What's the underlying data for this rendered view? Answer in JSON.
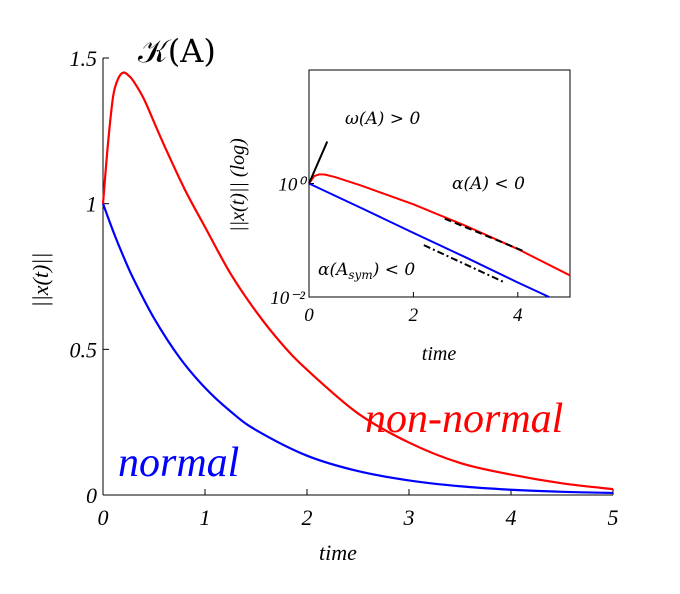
{
  "chart_data": [
    {
      "type": "line",
      "title": "𝒦(A)",
      "xlabel": "time",
      "ylabel": "||x(t)||",
      "xlim": [
        0,
        5
      ],
      "ylim": [
        0,
        1.5
      ],
      "xticks": [
        "0",
        "1",
        "2",
        "3",
        "4",
        "5"
      ],
      "yticks": [
        "0",
        "0.5",
        "1",
        "1.5"
      ],
      "grid": false,
      "series": [
        {
          "name": "normal",
          "color": "#0000ff",
          "x": [
            0,
            0.1,
            0.2,
            0.3,
            0.5,
            0.75,
            1,
            1.25,
            1.5,
            2,
            2.5,
            3,
            3.5,
            4,
            4.5,
            5
          ],
          "y": [
            1,
            0.905,
            0.819,
            0.741,
            0.607,
            0.472,
            0.368,
            0.287,
            0.223,
            0.135,
            0.082,
            0.05,
            0.03,
            0.018,
            0.011,
            0.007
          ]
        },
        {
          "name": "non-normal",
          "color": "#ff0000",
          "x": [
            0,
            0.05,
            0.1,
            0.15,
            0.2,
            0.25,
            0.3,
            0.4,
            0.5,
            0.6,
            0.8,
            1,
            1.25,
            1.5,
            1.75,
            2,
            2.5,
            3,
            3.5,
            4,
            4.5,
            5
          ],
          "y": [
            1,
            1.21,
            1.37,
            1.43,
            1.45,
            1.44,
            1.42,
            1.36,
            1.28,
            1.2,
            1.05,
            0.92,
            0.76,
            0.63,
            0.52,
            0.43,
            0.28,
            0.18,
            0.11,
            0.07,
            0.04,
            0.02
          ]
        }
      ]
    },
    {
      "type": "line",
      "title": "",
      "xlabel": "time",
      "ylabel": "||x(t)|| (log)",
      "xlim": [
        0,
        5
      ],
      "ylim": [
        0.01,
        100
      ],
      "yscale": "log",
      "xticks": [
        "0",
        "2",
        "4"
      ],
      "yticks": [
        "10⁰",
        "10⁻²"
      ],
      "series": [
        {
          "name": "normal",
          "color": "#0000ff",
          "x": [
            0,
            1,
            2,
            3,
            4,
            4.6
          ],
          "y": [
            1,
            0.37,
            0.135,
            0.05,
            0.018,
            0.01
          ]
        },
        {
          "name": "non-normal",
          "color": "#ff0000",
          "x": [
            0,
            0.1,
            0.2,
            0.3,
            0.5,
            1,
            2,
            3,
            4,
            5
          ],
          "y": [
            1,
            1.35,
            1.45,
            1.44,
            1.3,
            0.92,
            0.43,
            0.18,
            0.07,
            0.024
          ]
        }
      ],
      "annotations": [
        {
          "text": "ω(A) > 0",
          "style": "solid"
        },
        {
          "text": "α(A) < 0",
          "style": "dashed"
        },
        {
          "text": "α(A_sym) < 0",
          "style": "dash-dot"
        }
      ]
    }
  ]
}
